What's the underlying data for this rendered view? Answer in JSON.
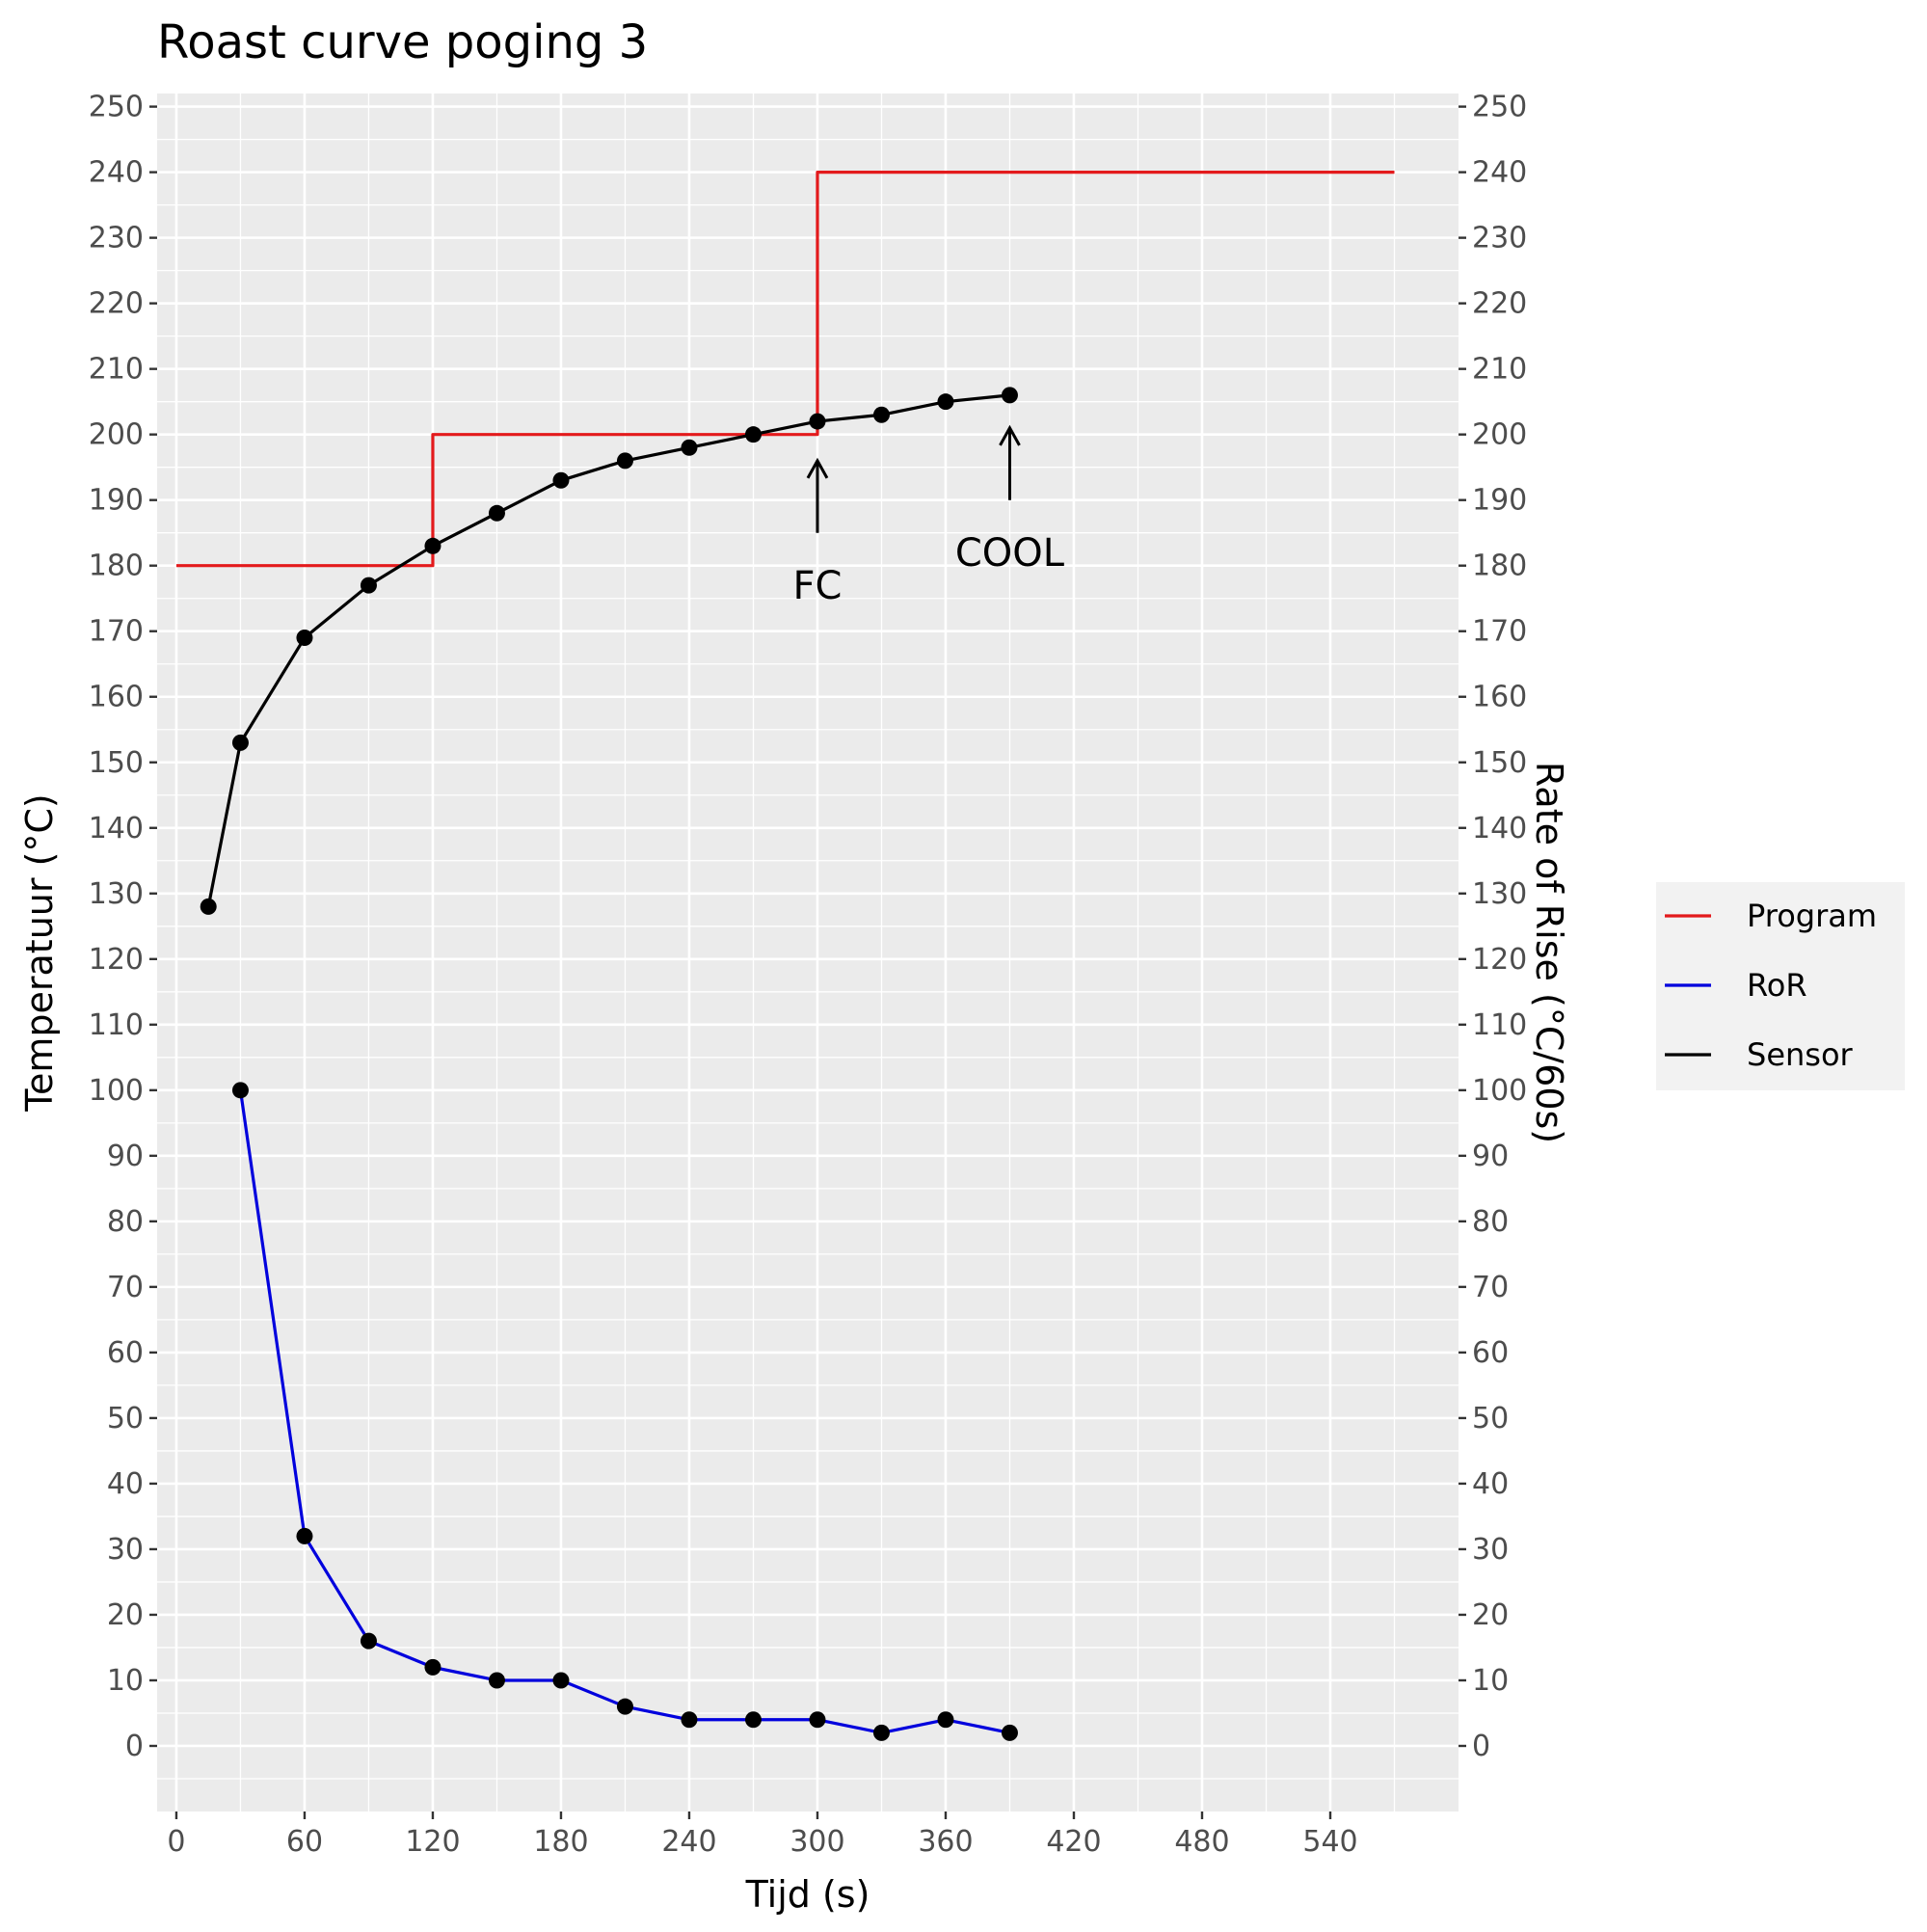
{
  "chart_data": {
    "type": "line",
    "title": "Roast curve poging 3",
    "xlabel": "Tijd (s)",
    "ylabel": "Temperatuur (°C)",
    "y2label": "Rate of Rise (°C/60s)",
    "xlim": [
      -9,
      600
    ],
    "ylim": [
      -10,
      252
    ],
    "x_ticks": [
      0,
      60,
      120,
      180,
      240,
      300,
      360,
      420,
      480,
      540
    ],
    "y_ticks": [
      0,
      10,
      20,
      30,
      40,
      50,
      60,
      70,
      80,
      90,
      100,
      110,
      120,
      130,
      140,
      150,
      160,
      170,
      180,
      190,
      200,
      210,
      220,
      230,
      240,
      250
    ],
    "grid": true,
    "legend_position": "right",
    "series": [
      {
        "name": "Program",
        "kind": "step",
        "color": "#e31a1c",
        "points": [
          [
            0,
            180
          ],
          [
            120,
            180
          ],
          [
            120,
            200
          ],
          [
            300,
            200
          ],
          [
            300,
            240
          ],
          [
            570,
            240
          ]
        ]
      },
      {
        "name": "RoR",
        "kind": "line-points",
        "color": "#0000dd",
        "points": [
          [
            30,
            100
          ],
          [
            60,
            32
          ],
          [
            90,
            16
          ],
          [
            120,
            12
          ],
          [
            150,
            10
          ],
          [
            180,
            10
          ],
          [
            210,
            6
          ],
          [
            240,
            4
          ],
          [
            270,
            4
          ],
          [
            300,
            4
          ],
          [
            330,
            2
          ],
          [
            360,
            4
          ],
          [
            390,
            2
          ]
        ]
      },
      {
        "name": "Sensor",
        "kind": "line-points",
        "color": "#000000",
        "points": [
          [
            15,
            128
          ],
          [
            30,
            153
          ],
          [
            60,
            169
          ],
          [
            90,
            177
          ],
          [
            120,
            183
          ],
          [
            150,
            188
          ],
          [
            180,
            193
          ],
          [
            210,
            196
          ],
          [
            240,
            198
          ],
          [
            270,
            200
          ],
          [
            300,
            202
          ],
          [
            330,
            203
          ],
          [
            360,
            205
          ],
          [
            390,
            206
          ]
        ]
      }
    ],
    "annotations": [
      {
        "label": "FC",
        "x": 300,
        "arrow_from": 185,
        "arrow_to": 196,
        "label_y": 177
      },
      {
        "label": "COOL",
        "x": 390,
        "arrow_from": 190,
        "arrow_to": 201,
        "label_y": 182
      }
    ],
    "legend": [
      "Program",
      "RoR",
      "Sensor"
    ]
  }
}
